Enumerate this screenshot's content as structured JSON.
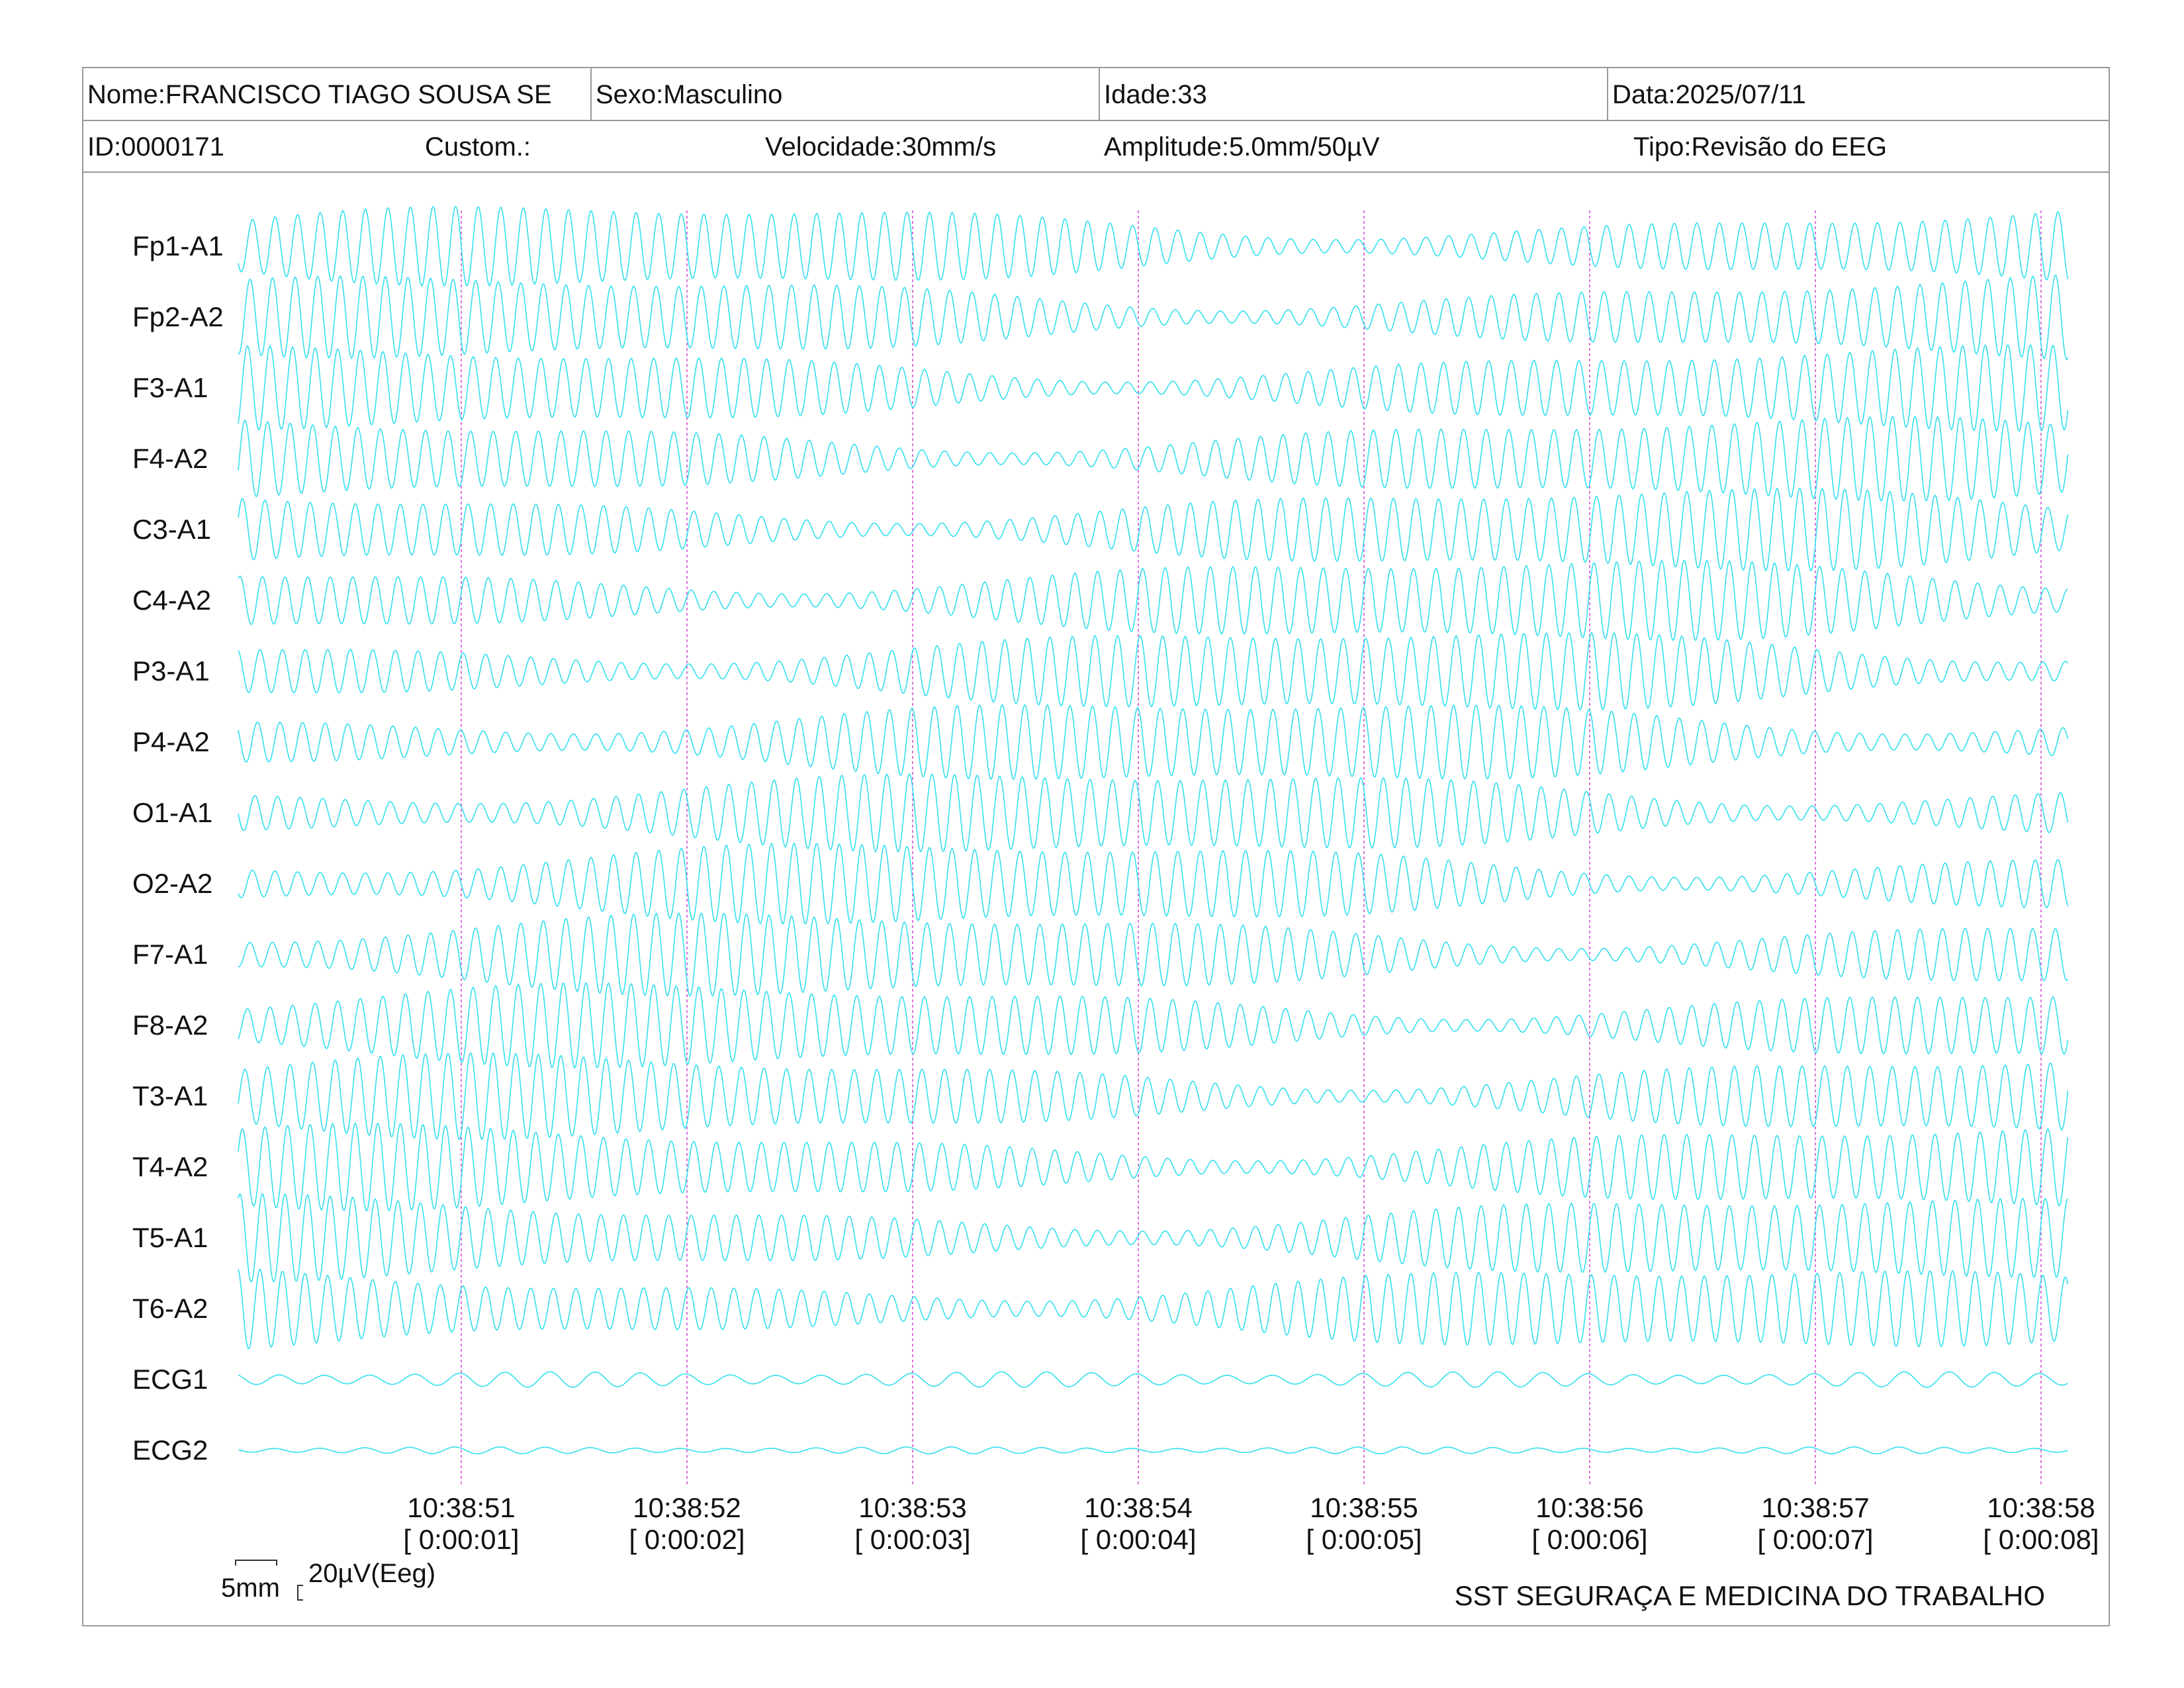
{
  "header": {
    "nome": "Nome:FRANCISCO TIAGO SOUSA SE",
    "sexo": "Sexo:Masculino",
    "idade": "Idade:33",
    "data": "Data:2025/07/11",
    "id": "ID:0000171",
    "custom": "Custom.:",
    "velocidade": "Velocidade:30mm/s",
    "amplitude": "Amplitude:5.0mm/50µV",
    "tipo": "Tipo:Revisão do EEG"
  },
  "scale": {
    "time_label": "5mm",
    "amp_label": "20µV(Eeg)"
  },
  "footer": {
    "org": "SST SEGURAÇA E MEDICINA DO TRABALHO"
  },
  "colors": {
    "trace": "#33e0ee",
    "marker": "#d040d0",
    "grid": "#999999"
  },
  "chart_data": {
    "type": "line",
    "channels": [
      "Fp1-A1",
      "Fp2-A2",
      "F3-A1",
      "F4-A2",
      "C3-A1",
      "C4-A2",
      "P3-A1",
      "P4-A2",
      "O1-A1",
      "O2-A2",
      "F7-A1",
      "F8-A2",
      "T3-A1",
      "T4-A2",
      "T5-A1",
      "T6-A2",
      "ECG1",
      "ECG2"
    ],
    "time_markers": [
      {
        "time": "10:38:51",
        "elapsed": "[ 0:00:01]"
      },
      {
        "time": "10:38:52",
        "elapsed": "[ 0:00:02]"
      },
      {
        "time": "10:38:53",
        "elapsed": "[ 0:00:03]"
      },
      {
        "time": "10:38:54",
        "elapsed": "[ 0:00:04]"
      },
      {
        "time": "10:38:55",
        "elapsed": "[ 0:00:05]"
      },
      {
        "time": "10:38:56",
        "elapsed": "[ 0:00:06]"
      },
      {
        "time": "10:38:57",
        "elapsed": "[ 0:00:07]"
      },
      {
        "time": "10:38:58",
        "elapsed": "[ 0:00:08]"
      }
    ],
    "duration_s": 8.1,
    "eeg_freq_hz": 10,
    "ecg_freq_hz": 5
  }
}
